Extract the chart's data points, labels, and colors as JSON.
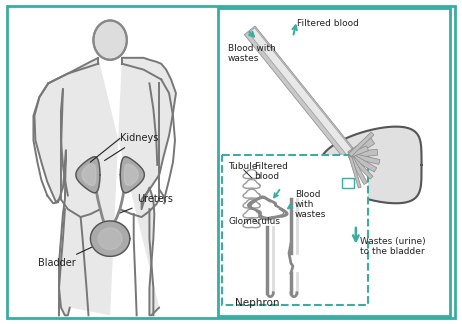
{
  "bg_color": "#f0f0ee",
  "border_color": "#3aada0",
  "body_color": "#888888",
  "organ_fill": "#999999",
  "organ_edge": "#555555",
  "text_color": "#222222",
  "teal_color": "#3aada0",
  "white": "#ffffff",
  "font_size": 6.5,
  "lw_border": 2.0,
  "lw_body": 1.5,
  "labels": {
    "kidneys": "Kidneys",
    "ureters": "Ureters",
    "bladder": "Bladder",
    "blood_wastes": "Blood with\nwastes",
    "filtered_blood": "Filtered blood",
    "wastes_bladder": "Wastes (urine)\nto the bladder",
    "tubule": "Tubule",
    "filtered_inner": "Filtered\nblood",
    "blood_inner": "Blood\nwith\nwastes",
    "glomerulus": "Glomerulus",
    "nephron": "Nephron"
  }
}
